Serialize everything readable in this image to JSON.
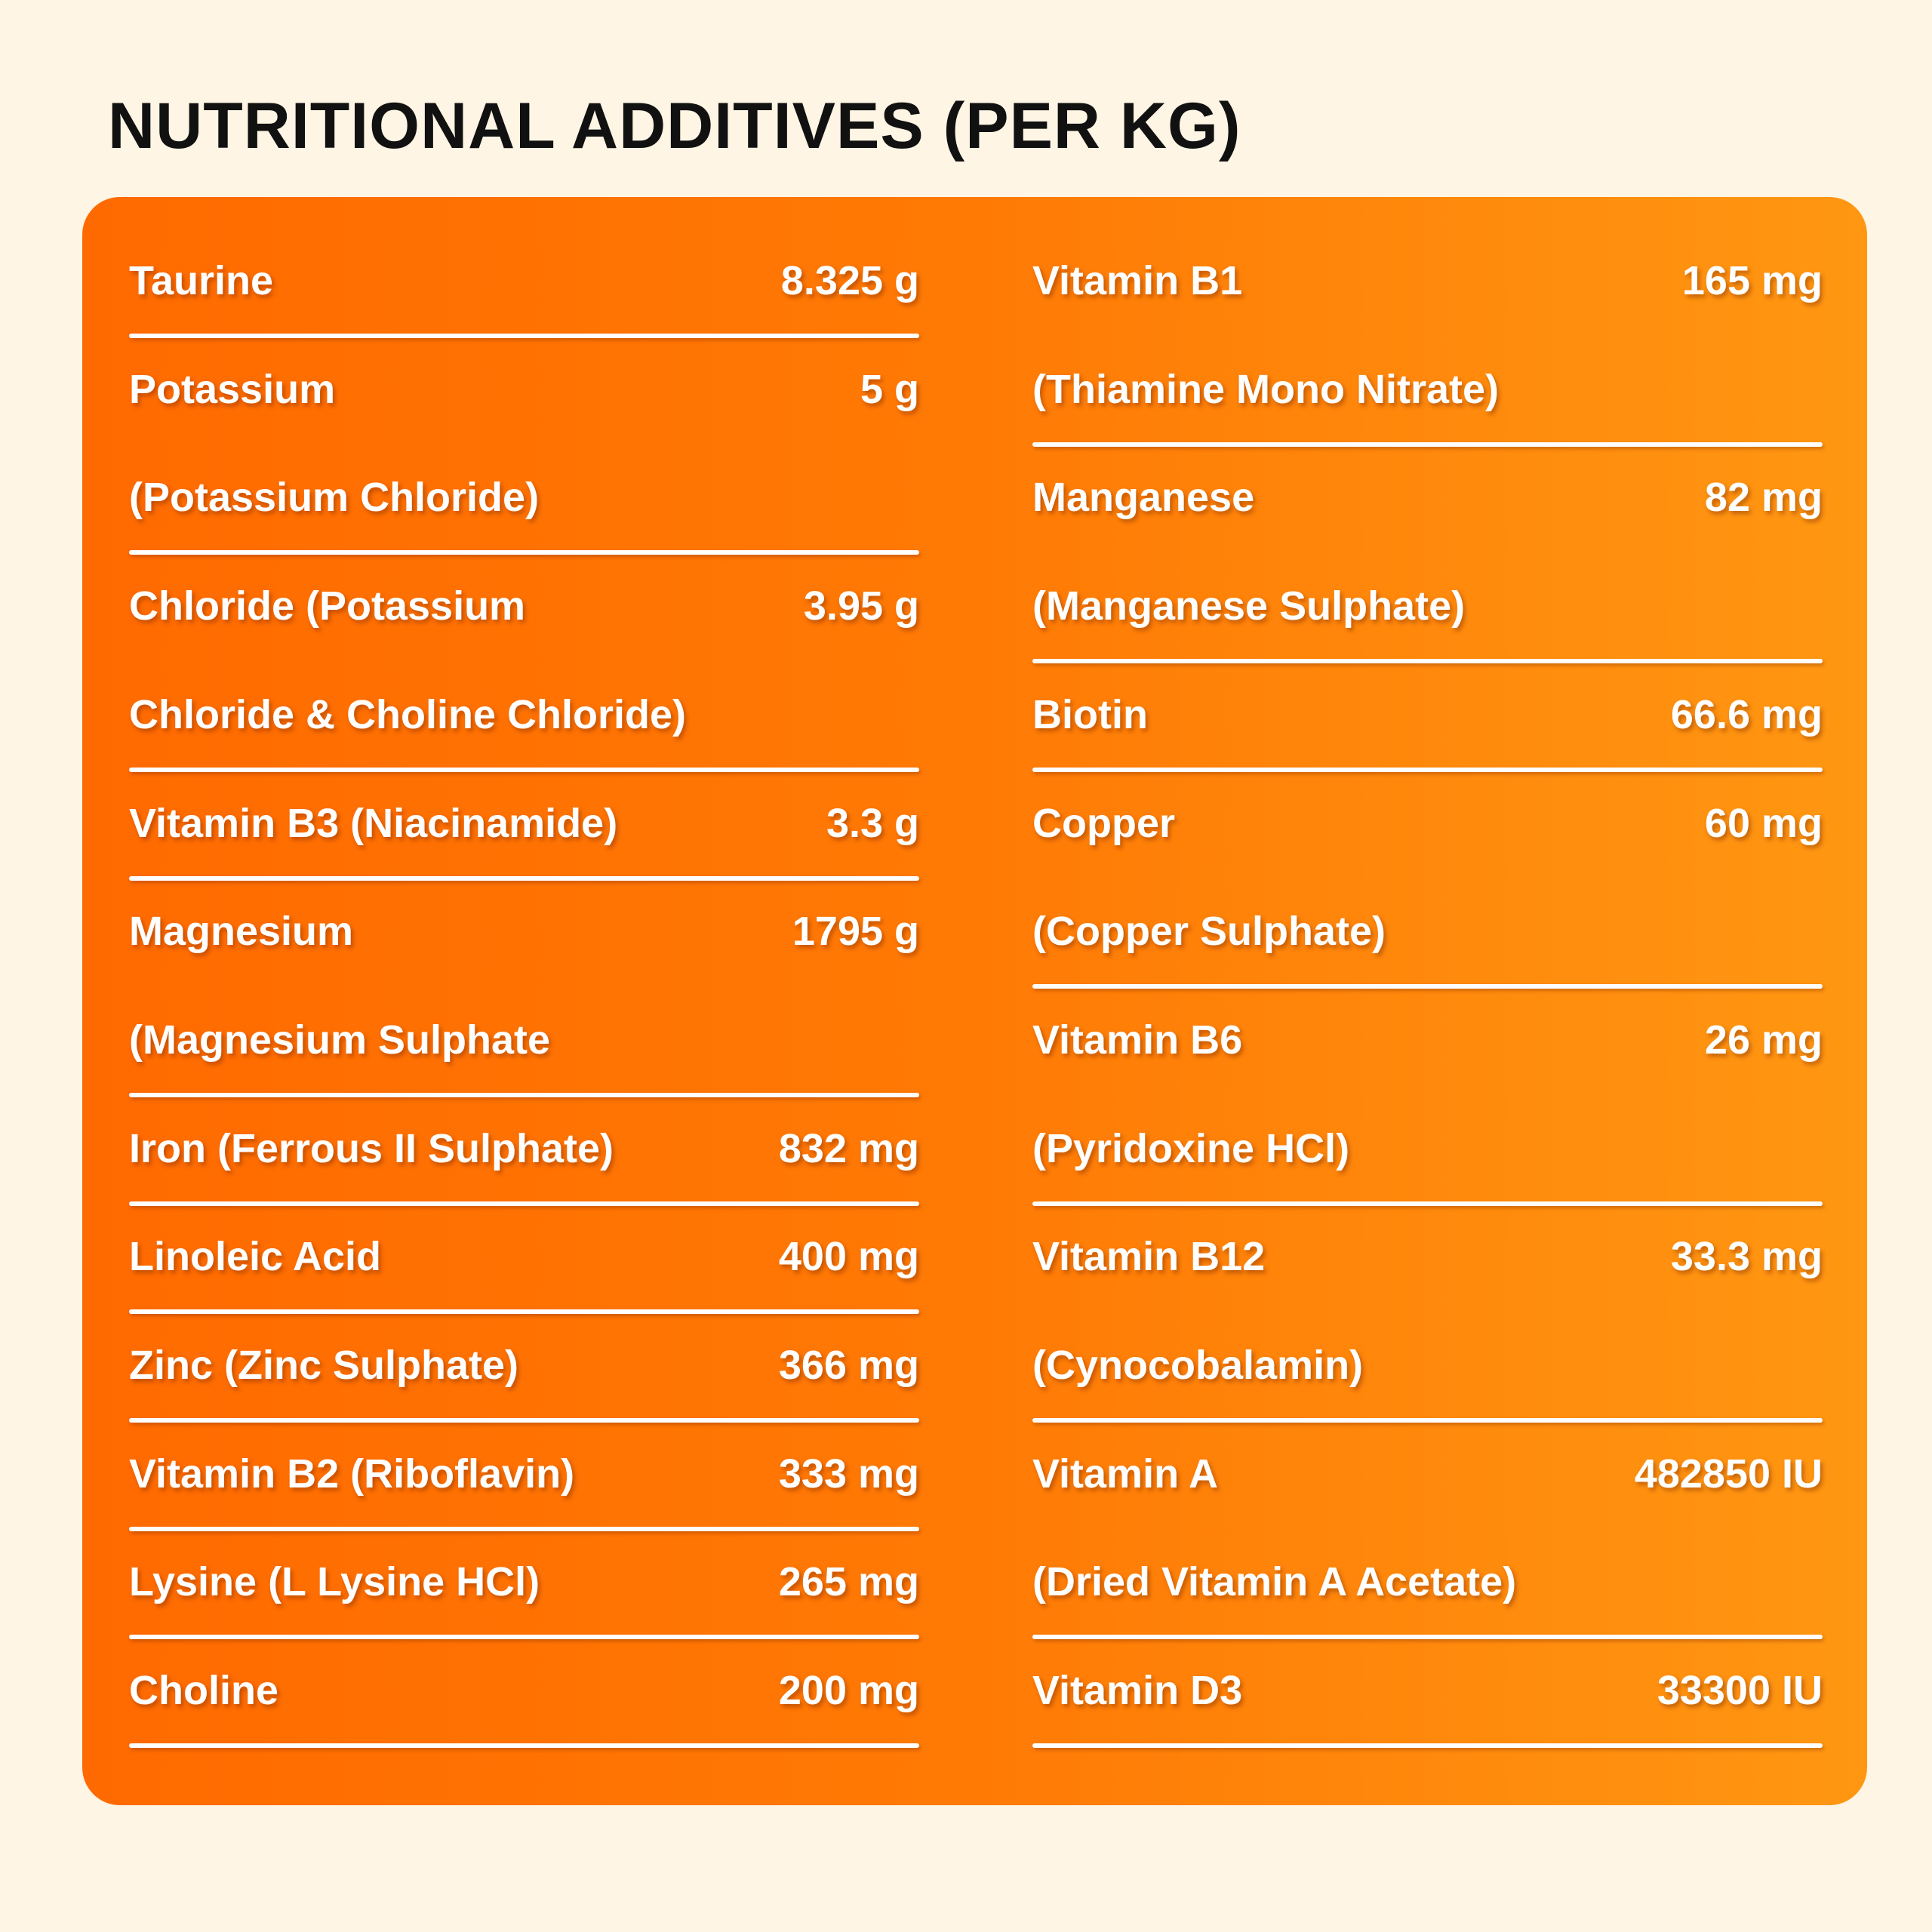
{
  "header": {
    "title": "NUTRITIONAL ADDITIVES (PER KG)"
  },
  "columns": [
    [
      {
        "lines": [
          "Taurine"
        ],
        "amount": "8.325 g"
      },
      {
        "lines": [
          "Potassium",
          "(Potassium Chloride)"
        ],
        "amount": "5 g"
      },
      {
        "lines": [
          "Chloride (Potassium",
          "Chloride & Choline Chloride)"
        ],
        "amount": "3.95 g"
      },
      {
        "lines": [
          "Vitamin B3 (Niacinamide)"
        ],
        "amount": "3.3 g"
      },
      {
        "lines": [
          "Magnesium",
          "(Magnesium Sulphate"
        ],
        "amount": "1795 g"
      },
      {
        "lines": [
          "Iron (Ferrous II Sulphate)"
        ],
        "amount": "832 mg"
      },
      {
        "lines": [
          "Linoleic Acid"
        ],
        "amount": "400 mg"
      },
      {
        "lines": [
          "Zinc (Zinc Sulphate)"
        ],
        "amount": "366 mg"
      },
      {
        "lines": [
          "Vitamin B2 (Riboflavin)"
        ],
        "amount": "333 mg"
      },
      {
        "lines": [
          "Lysine (L Lysine HCl)"
        ],
        "amount": "265 mg"
      },
      {
        "lines": [
          "Choline"
        ],
        "amount": "200 mg"
      }
    ],
    [
      {
        "lines": [
          "Vitamin B1",
          "(Thiamine Mono Nitrate)"
        ],
        "amount": "165 mg"
      },
      {
        "lines": [
          "Manganese",
          "(Manganese Sulphate)"
        ],
        "amount": "82 mg"
      },
      {
        "lines": [
          "Biotin"
        ],
        "amount": "66.6 mg"
      },
      {
        "lines": [
          "Copper",
          "(Copper Sulphate)"
        ],
        "amount": "60 mg"
      },
      {
        "lines": [
          "Vitamin B6",
          "(Pyridoxine HCl)"
        ],
        "amount": "26 mg"
      },
      {
        "lines": [
          "Vitamin B12",
          "(Cynocobalamin)"
        ],
        "amount": "33.3 mg"
      },
      {
        "lines": [
          "Vitamin A",
          "(Dried Vitamin A Acetate)"
        ],
        "amount": "482850 IU"
      },
      {
        "lines": [
          "Vitamin D3"
        ],
        "amount": "33300 IU"
      }
    ]
  ]
}
